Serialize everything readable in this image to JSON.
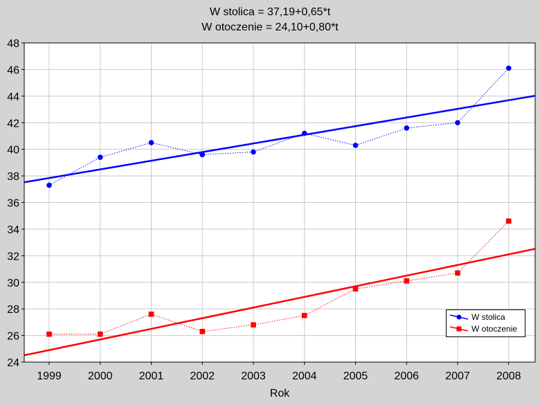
{
  "chart_data": {
    "type": "line",
    "title": [
      "W stolica = 37,19+0,65*t",
      "W otoczenie = 24,10+0,80*t"
    ],
    "xlabel": "Rok",
    "ylabel": "",
    "categories": [
      "1999",
      "2000",
      "2001",
      "2002",
      "2003",
      "2004",
      "2005",
      "2006",
      "2007",
      "2008"
    ],
    "ylim": [
      24,
      48
    ],
    "yticks": [
      "24",
      "26",
      "28",
      "30",
      "32",
      "34",
      "36",
      "38",
      "40",
      "42",
      "44",
      "46",
      "48"
    ],
    "grid": true,
    "legend_position": "bottom-right",
    "series": [
      {
        "name": "W stolica",
        "marker": "circle",
        "color": "#0000ff",
        "values": [
          37.3,
          39.4,
          40.5,
          39.6,
          39.8,
          41.2,
          40.3,
          41.6,
          42.0,
          46.1
        ],
        "fit": {
          "intercept": 37.19,
          "slope": 0.65
        }
      },
      {
        "name": "W otoczenie",
        "marker": "square",
        "color": "#ff0000",
        "values": [
          26.1,
          26.1,
          27.6,
          26.3,
          26.8,
          27.5,
          29.5,
          30.1,
          30.7,
          34.6
        ],
        "fit": {
          "intercept": 24.1,
          "slope": 0.8
        }
      }
    ]
  }
}
